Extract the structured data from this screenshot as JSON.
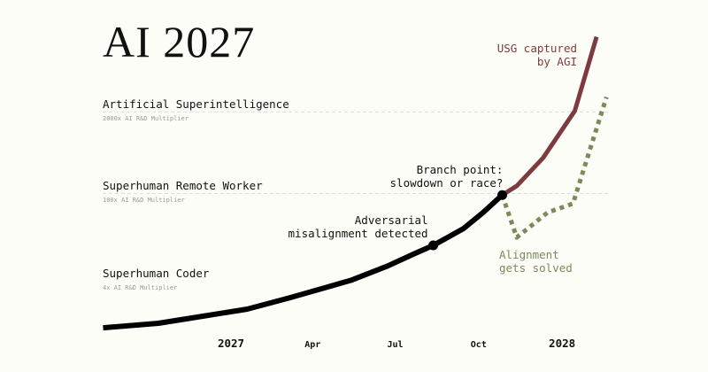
{
  "title": "AI 2027",
  "chart_data": {
    "type": "line",
    "title": "AI 2027",
    "y_scale": "log",
    "y_unit": "AI R&D Multiplier",
    "levels": [
      {
        "name": "Artificial Superintelligence",
        "sub": "2000x AI R&D Multiplier",
        "value": 2000,
        "dashed_line": true
      },
      {
        "name": "Superhuman Remote Worker",
        "sub": "100x AI R&D Multiplier",
        "value": 100,
        "dashed_line": true
      },
      {
        "name": "Superhuman Coder",
        "sub": "4x AI R&D Multiplier",
        "value": 4,
        "dashed_line": false
      }
    ],
    "x_ticks": [
      {
        "label": "2027",
        "date": "2027-01-01",
        "major": true
      },
      {
        "label": "Apr",
        "date": "2027-04-01",
        "major": false
      },
      {
        "label": "Jul",
        "date": "2027-07-01",
        "major": false
      },
      {
        "label": "Oct",
        "date": "2027-10-01",
        "major": false
      },
      {
        "label": "2028",
        "date": "2028-01-01",
        "major": true
      }
    ],
    "series": [
      {
        "key": "main",
        "color": "#000000",
        "style": "solid",
        "points": [
          [
            "2026-08-13",
            0.71
          ],
          [
            "2026-10-13",
            0.84
          ],
          [
            "2026-12-01",
            1.09
          ],
          [
            "2027-01-19",
            1.41
          ],
          [
            "2027-03-07",
            2.15
          ],
          [
            "2027-04-15",
            3.1
          ],
          [
            "2027-05-14",
            4.1
          ],
          [
            "2027-06-23",
            6.9
          ],
          [
            "2027-07-21",
            10.6
          ],
          [
            "2027-08-12",
            14.7
          ],
          [
            "2027-09-14",
            27
          ],
          [
            "2027-10-06",
            49
          ],
          [
            "2027-10-27",
            93
          ]
        ]
      },
      {
        "key": "race",
        "name": "USG captured by AGI",
        "color": "#7e3b3f",
        "style": "solid",
        "points": [
          [
            "2027-10-27",
            93
          ],
          [
            "2027-11-12",
            130
          ],
          [
            "2027-12-11",
            364
          ],
          [
            "2028-01-15",
            2048
          ],
          [
            "2028-02-08",
            31000
          ]
        ]
      },
      {
        "key": "slowdown",
        "name": "Alignment gets solved",
        "color": "#7a8a5a",
        "style": "dotted",
        "points": [
          [
            "2027-10-27",
            93
          ],
          [
            "2027-11-12",
            19.6
          ],
          [
            "2027-12-16",
            49
          ],
          [
            "2028-01-13",
            68
          ],
          [
            "2028-02-19",
            3400
          ]
        ]
      }
    ],
    "annotations": [
      {
        "lines": [
          "Adversarial",
          "misalignment detected"
        ],
        "date": "2027-08-12",
        "value": 14.7
      },
      {
        "lines": [
          "Branch point:",
          "slowdown or race?"
        ],
        "date": "2027-10-27",
        "value": 93
      }
    ],
    "series_labels": {
      "race": [
        "USG captured",
        "by AGI"
      ],
      "slowdown": [
        "Alignment",
        "gets solved"
      ]
    }
  }
}
